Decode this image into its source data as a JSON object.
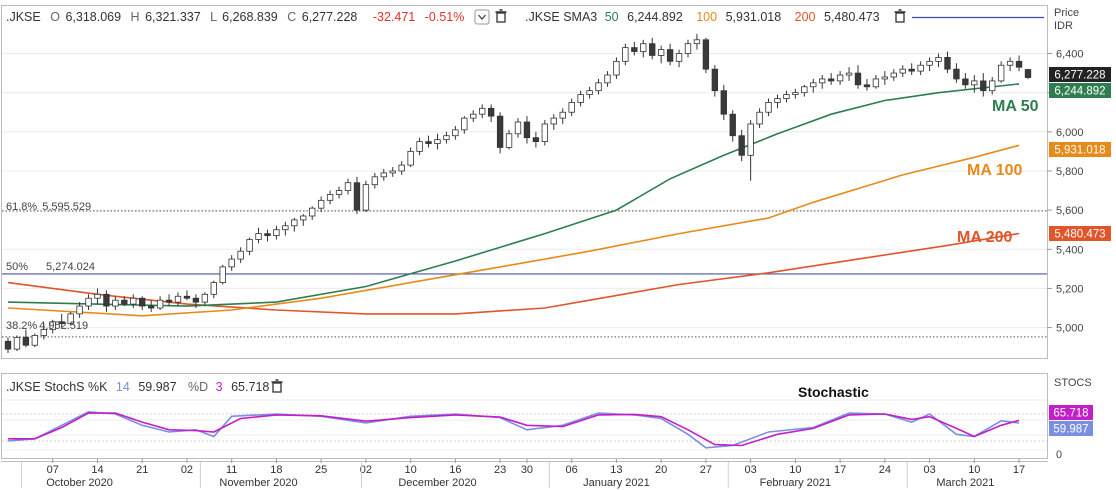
{
  "main_legend": {
    "symbol": ".JKSE",
    "o_label": "O",
    "o_value": "6,318.069",
    "h_label": "H",
    "h_value": "6,321.337",
    "l_label": "L",
    "l_value": "6,268.839",
    "c_label": "C",
    "c_value": "6,277.228",
    "change": "-32.471",
    "change_pct": "-0.51%",
    "sma_label": ".JKSE SMA3",
    "sma1_period": "50",
    "sma1_value": "6,244.892",
    "sma2_period": "100",
    "sma2_value": "5,931.018",
    "sma3_period": "200",
    "sma3_value": "5,480.473",
    "axis_title_1": "Price",
    "axis_title_2": "IDR"
  },
  "stoch_legend": {
    "label": ".JKSE StochS %K",
    "k_period": "14",
    "k_value": "59.987",
    "d_label": "%D",
    "d_period": "3",
    "d_value": "65.718",
    "axis_title": "STOCS"
  },
  "annotations": {
    "ma50": "MA 50",
    "ma100": "MA 100",
    "ma200": "MA 200",
    "stochastic": "Stochastic",
    "fib_618_pct": "61.8%",
    "fib_618_val": "5,595.529",
    "fib_50_pct": "50%",
    "fib_50_val": "5,274.024",
    "fib_382_pct": "38.2%",
    "fib_382_val": "4,952.519"
  },
  "tags": {
    "close": "6,277.228",
    "ma50": "6,244.892",
    "ma100": "5,931.018",
    "ma200": "5,480.473",
    "stoch_d": "65.718",
    "stoch_k": "59.987"
  },
  "colors": {
    "candle_up": "#ffffff",
    "candle_down": "#3a3a3a",
    "ma50": "#2e7d4f",
    "ma100": "#e88a1a",
    "ma200": "#e2552a",
    "stoch_k": "#7b8ee0",
    "stoch_d": "#c21fc8",
    "fib_50": "#4a55a2",
    "negative": "#e0312b"
  },
  "chart_data": [
    {
      "type": "candlestick",
      "title": "",
      "ylabel": "Price IDR",
      "ylim": [
        4860,
        6520
      ],
      "yticks": [
        "5,000",
        "5,200",
        "5,400",
        "5,600",
        "5,800",
        "6,000",
        "6,200",
        "6,400"
      ],
      "ytick_values": [
        5000,
        5200,
        5400,
        5600,
        5800,
        6000,
        6200,
        6400
      ],
      "fib_levels": [
        {
          "label": "61.8%",
          "value": 5595.529
        },
        {
          "label": "50%",
          "value": 5274.024
        },
        {
          "label": "38.2%",
          "value": 4952.519
        }
      ],
      "x_tick_labels": [
        "07",
        "14",
        "21",
        "02",
        "11",
        "18",
        "25",
        "02",
        "10",
        "16",
        "23",
        "30",
        "06",
        "13",
        "20",
        "27",
        "03",
        "10",
        "17",
        "24",
        "03",
        "10",
        "17"
      ],
      "x_tick_index": [
        5,
        10,
        15,
        20,
        25,
        30,
        35,
        40,
        45,
        50,
        55,
        58,
        63,
        68,
        73,
        78,
        83,
        88,
        93,
        98,
        103,
        108,
        113
      ],
      "month_labels": [
        "October 2020",
        "November 2020",
        "December 2020",
        "January 2021",
        "February 2021",
        "March 2021"
      ],
      "month_index": [
        8,
        28,
        48,
        68,
        88,
        107
      ],
      "month_boundary_index": [
        1.5,
        21.5,
        39.5,
        60.5,
        80.5,
        100.5
      ],
      "candles": [
        [
          4930,
          4950,
          4870,
          4890
        ],
        [
          4890,
          4960,
          4880,
          4950
        ],
        [
          4950,
          4990,
          4900,
          4910
        ],
        [
          4910,
          4970,
          4900,
          4960
        ],
        [
          4960,
          5020,
          4940,
          4990
        ],
        [
          4990,
          5040,
          4970,
          5030
        ],
        [
          5030,
          5070,
          5000,
          5020
        ],
        [
          5020,
          5080,
          5010,
          5070
        ],
        [
          5070,
          5130,
          5050,
          5110
        ],
        [
          5110,
          5170,
          5090,
          5150
        ],
        [
          5150,
          5200,
          5120,
          5170
        ],
        [
          5170,
          5190,
          5080,
          5110
        ],
        [
          5110,
          5160,
          5090,
          5140
        ],
        [
          5140,
          5160,
          5110,
          5120
        ],
        [
          5120,
          5170,
          5100,
          5150
        ],
        [
          5150,
          5160,
          5090,
          5110
        ],
        [
          5110,
          5140,
          5080,
          5100
        ],
        [
          5100,
          5160,
          5090,
          5140
        ],
        [
          5140,
          5170,
          5110,
          5130
        ],
        [
          5130,
          5180,
          5110,
          5160
        ],
        [
          5160,
          5190,
          5140,
          5150
        ],
        [
          5150,
          5170,
          5100,
          5130
        ],
        [
          5130,
          5180,
          5110,
          5170
        ],
        [
          5170,
          5240,
          5150,
          5230
        ],
        [
          5230,
          5320,
          5220,
          5310
        ],
        [
          5310,
          5370,
          5290,
          5350
        ],
        [
          5350,
          5410,
          5330,
          5390
        ],
        [
          5390,
          5460,
          5370,
          5450
        ],
        [
          5450,
          5510,
          5430,
          5480
        ],
        [
          5480,
          5500,
          5440,
          5470
        ],
        [
          5470,
          5520,
          5450,
          5500
        ],
        [
          5500,
          5540,
          5470,
          5520
        ],
        [
          5520,
          5560,
          5490,
          5550
        ],
        [
          5550,
          5580,
          5520,
          5570
        ],
        [
          5570,
          5620,
          5550,
          5610
        ],
        [
          5610,
          5670,
          5590,
          5650
        ],
        [
          5650,
          5700,
          5630,
          5680
        ],
        [
          5680,
          5720,
          5660,
          5700
        ],
        [
          5700,
          5760,
          5680,
          5740
        ],
        [
          5740,
          5770,
          5580,
          5600
        ],
        [
          5600,
          5750,
          5590,
          5730
        ],
        [
          5730,
          5790,
          5710,
          5770
        ],
        [
          5770,
          5810,
          5750,
          5790
        ],
        [
          5790,
          5820,
          5770,
          5800
        ],
        [
          5800,
          5850,
          5780,
          5830
        ],
        [
          5830,
          5920,
          5820,
          5900
        ],
        [
          5900,
          5970,
          5880,
          5950
        ],
        [
          5950,
          5980,
          5920,
          5940
        ],
        [
          5940,
          5990,
          5910,
          5960
        ],
        [
          5960,
          6000,
          5940,
          5980
        ],
        [
          5980,
          6030,
          5960,
          6010
        ],
        [
          6010,
          6080,
          5990,
          6070
        ],
        [
          6070,
          6110,
          6050,
          6090
        ],
        [
          6090,
          6140,
          6070,
          6120
        ],
        [
          6120,
          6140,
          6050,
          6080
        ],
        [
          6080,
          6100,
          5890,
          5920
        ],
        [
          5920,
          6010,
          5910,
          5990
        ],
        [
          5990,
          6070,
          5970,
          6050
        ],
        [
          6050,
          6080,
          5940,
          5970
        ],
        [
          5970,
          6000,
          5920,
          5950
        ],
        [
          5950,
          6060,
          5930,
          6040
        ],
        [
          6040,
          6090,
          6010,
          6070
        ],
        [
          6070,
          6120,
          6040,
          6100
        ],
        [
          6100,
          6170,
          6080,
          6150
        ],
        [
          6150,
          6210,
          6130,
          6190
        ],
        [
          6190,
          6230,
          6170,
          6210
        ],
        [
          6210,
          6270,
          6190,
          6250
        ],
        [
          6250,
          6310,
          6230,
          6290
        ],
        [
          6290,
          6380,
          6270,
          6360
        ],
        [
          6360,
          6450,
          6340,
          6430
        ],
        [
          6430,
          6460,
          6390,
          6410
        ],
        [
          6410,
          6470,
          6380,
          6450
        ],
        [
          6450,
          6480,
          6370,
          6390
        ],
        [
          6390,
          6440,
          6350,
          6420
        ],
        [
          6420,
          6450,
          6340,
          6360
        ],
        [
          6360,
          6420,
          6330,
          6400
        ],
        [
          6400,
          6470,
          6380,
          6450
        ],
        [
          6450,
          6500,
          6420,
          6470
        ],
        [
          6470,
          6480,
          6300,
          6320
        ],
        [
          6320,
          6340,
          6180,
          6210
        ],
        [
          6210,
          6240,
          6060,
          6090
        ],
        [
          6090,
          6110,
          5950,
          5980
        ],
        [
          5980,
          6010,
          5850,
          5880
        ],
        [
          5880,
          6060,
          5750,
          6040
        ],
        [
          6040,
          6120,
          6020,
          6100
        ],
        [
          6100,
          6170,
          6080,
          6150
        ],
        [
          6150,
          6190,
          6120,
          6170
        ],
        [
          6170,
          6210,
          6150,
          6190
        ],
        [
          6190,
          6220,
          6170,
          6200
        ],
        [
          6200,
          6240,
          6180,
          6230
        ],
        [
          6230,
          6270,
          6200,
          6250
        ],
        [
          6250,
          6290,
          6220,
          6270
        ],
        [
          6270,
          6300,
          6240,
          6260
        ],
        [
          6260,
          6310,
          6240,
          6290
        ],
        [
          6290,
          6330,
          6260,
          6300
        ],
        [
          6300,
          6340,
          6220,
          6240
        ],
        [
          6240,
          6270,
          6210,
          6230
        ],
        [
          6230,
          6290,
          6220,
          6270
        ],
        [
          6270,
          6310,
          6240,
          6280
        ],
        [
          6280,
          6320,
          6260,
          6300
        ],
        [
          6300,
          6340,
          6280,
          6320
        ],
        [
          6320,
          6350,
          6290,
          6310
        ],
        [
          6310,
          6360,
          6290,
          6340
        ],
        [
          6340,
          6380,
          6310,
          6360
        ],
        [
          6360,
          6400,
          6330,
          6380
        ],
        [
          6380,
          6410,
          6300,
          6320
        ],
        [
          6320,
          6350,
          6250,
          6270
        ],
        [
          6270,
          6300,
          6220,
          6240
        ],
        [
          6240,
          6290,
          6200,
          6260
        ],
        [
          6260,
          6300,
          6180,
          6210
        ],
        [
          6210,
          6280,
          6190,
          6260
        ],
        [
          6260,
          6360,
          6250,
          6340
        ],
        [
          6340,
          6380,
          6310,
          6360
        ],
        [
          6360,
          6390,
          6310,
          6330
        ],
        [
          6318.069,
          6321.337,
          6268.839,
          6277.228
        ]
      ],
      "ma50": [
        [
          0,
          5130
        ],
        [
          20,
          5110
        ],
        [
          30,
          5130
        ],
        [
          40,
          5210
        ],
        [
          50,
          5340
        ],
        [
          60,
          5480
        ],
        [
          68,
          5600
        ],
        [
          74,
          5760
        ],
        [
          80,
          5880
        ],
        [
          86,
          5990
        ],
        [
          92,
          6090
        ],
        [
          98,
          6160
        ],
        [
          104,
          6200
        ],
        [
          113,
          6244.892
        ]
      ],
      "ma100": [
        [
          0,
          5100
        ],
        [
          15,
          5060
        ],
        [
          25,
          5090
        ],
        [
          35,
          5150
        ],
        [
          45,
          5230
        ],
        [
          55,
          5310
        ],
        [
          65,
          5390
        ],
        [
          75,
          5480
        ],
        [
          85,
          5560
        ],
        [
          90,
          5640
        ],
        [
          100,
          5780
        ],
        [
          108,
          5870
        ],
        [
          113,
          5931.018
        ]
      ],
      "ma200": [
        [
          0,
          5230
        ],
        [
          10,
          5170
        ],
        [
          20,
          5120
        ],
        [
          30,
          5090
        ],
        [
          40,
          5070
        ],
        [
          50,
          5070
        ],
        [
          60,
          5100
        ],
        [
          65,
          5140
        ],
        [
          75,
          5220
        ],
        [
          85,
          5280
        ],
        [
          95,
          5350
        ],
        [
          105,
          5420
        ],
        [
          113,
          5480.473
        ]
      ]
    },
    {
      "type": "line",
      "title": "Stochastic",
      "ylabel": "STOCS",
      "ylim": [
        0,
        100
      ],
      "series": [
        {
          "name": "%K",
          "color": "#7b8ee0",
          "values": [
            [
              0,
              20
            ],
            [
              3,
              25
            ],
            [
              6,
              55
            ],
            [
              9,
              85
            ],
            [
              12,
              80
            ],
            [
              15,
              55
            ],
            [
              18,
              40
            ],
            [
              21,
              45
            ],
            [
              23,
              30
            ],
            [
              25,
              75
            ],
            [
              30,
              80
            ],
            [
              35,
              75
            ],
            [
              40,
              60
            ],
            [
              45,
              75
            ],
            [
              50,
              80
            ],
            [
              55,
              72
            ],
            [
              58,
              45
            ],
            [
              62,
              55
            ],
            [
              66,
              82
            ],
            [
              70,
              78
            ],
            [
              73,
              70
            ],
            [
              76,
              35
            ],
            [
              78,
              5
            ],
            [
              81,
              10
            ],
            [
              85,
              40
            ],
            [
              90,
              50
            ],
            [
              94,
              82
            ],
            [
              98,
              80
            ],
            [
              101,
              62
            ],
            [
              103,
              80
            ],
            [
              106,
              35
            ],
            [
              108,
              30
            ],
            [
              111,
              65
            ],
            [
              113,
              59.987
            ]
          ]
        },
        {
          "name": "%D",
          "color": "#c21fc8",
          "values": [
            [
              0,
              25
            ],
            [
              3,
              25
            ],
            [
              6,
              50
            ],
            [
              9,
              82
            ],
            [
              12,
              82
            ],
            [
              15,
              62
            ],
            [
              18,
              45
            ],
            [
              21,
              43
            ],
            [
              23,
              40
            ],
            [
              26,
              70
            ],
            [
              30,
              78
            ],
            [
              35,
              76
            ],
            [
              40,
              64
            ],
            [
              45,
              72
            ],
            [
              50,
              78
            ],
            [
              55,
              73
            ],
            [
              58,
              55
            ],
            [
              62,
              52
            ],
            [
              66,
              78
            ],
            [
              70,
              79
            ],
            [
              73,
              74
            ],
            [
              76,
              45
            ],
            [
              79,
              12
            ],
            [
              82,
              10
            ],
            [
              86,
              35
            ],
            [
              90,
              48
            ],
            [
              94,
              78
            ],
            [
              98,
              80
            ],
            [
              101,
              68
            ],
            [
              103,
              74
            ],
            [
              106,
              48
            ],
            [
              108,
              30
            ],
            [
              111,
              55
            ],
            [
              113,
              65.718
            ]
          ]
        }
      ]
    }
  ]
}
